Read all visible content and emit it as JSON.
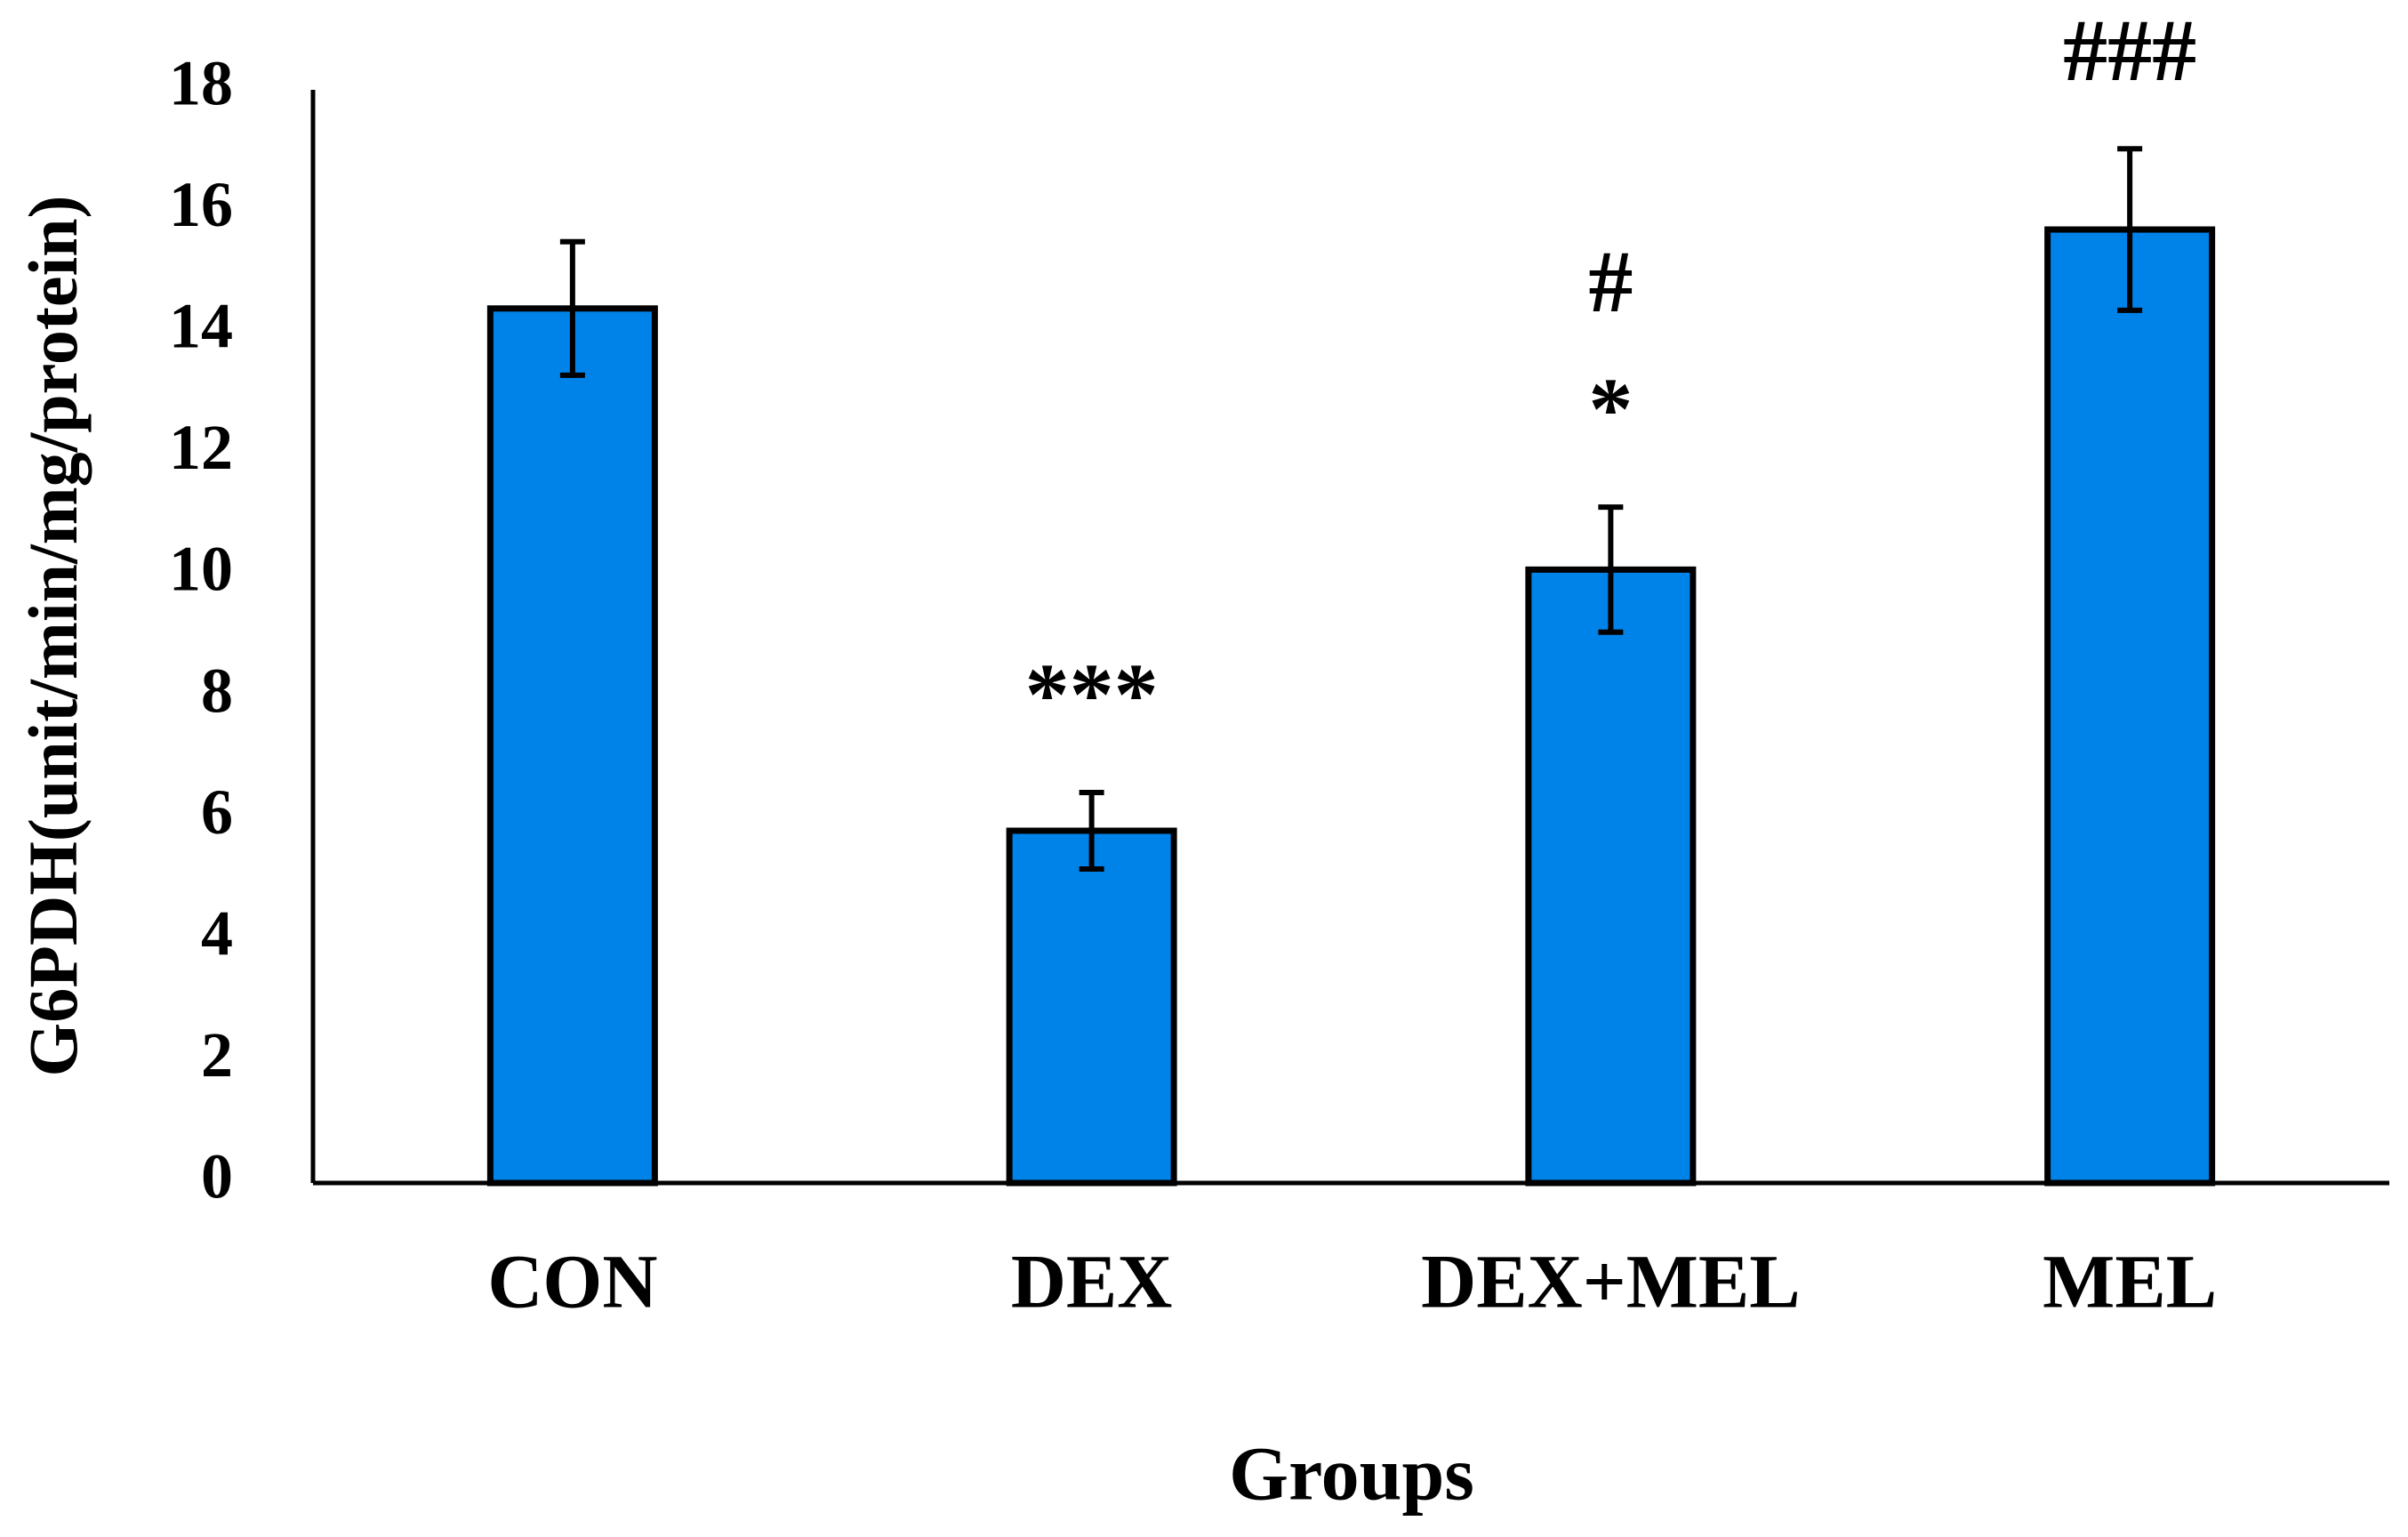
{
  "chart_data": {
    "type": "bar",
    "x_label": "Groups",
    "y_label": "G6PDH(unit/min/mg/protein)",
    "categories": [
      "CON",
      "DEX",
      "DEX+MEL",
      "MEL"
    ],
    "values": [
      14.4,
      5.8,
      10.1,
      15.7
    ],
    "errors": [
      1.1,
      0.63,
      1.03,
      1.33
    ],
    "annotations": [
      [],
      [
        "***"
      ],
      [
        "#",
        "*"
      ],
      [
        "###"
      ]
    ],
    "color": "#0083E8",
    "ylim": [
      0,
      18
    ],
    "yticks": [
      0,
      2,
      4,
      6,
      8,
      10,
      12,
      14,
      16,
      18
    ],
    "grid": false
  }
}
